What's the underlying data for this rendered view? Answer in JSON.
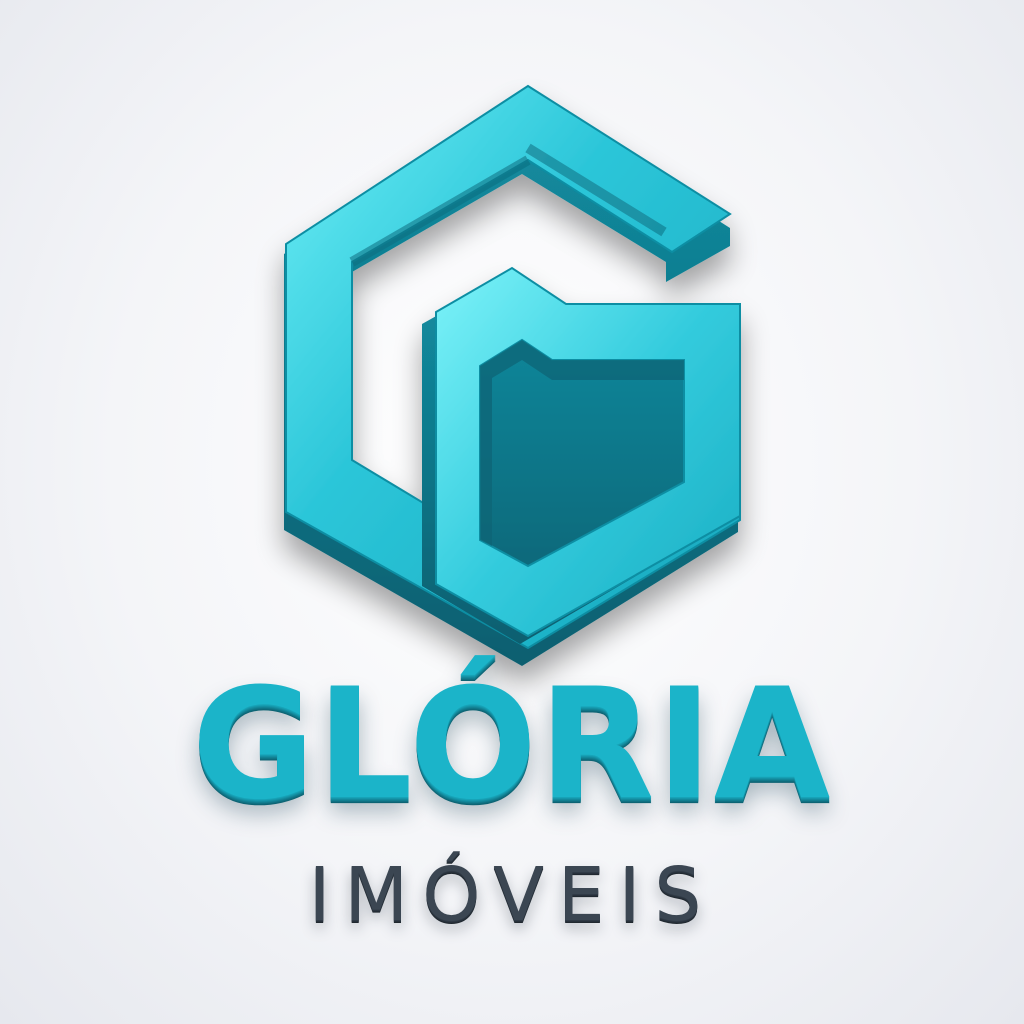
{
  "brand": {
    "name": "GLÓRIA",
    "subtitle": "IMÓVEIS",
    "emblem_icon": "stylized-g-house-icon"
  },
  "colors": {
    "background": "#f2f3f6",
    "primary": "#1bb4c9",
    "primary_dark": "#0d6373",
    "primary_light": "#5fe3f0",
    "text_dark": "#3b4652"
  }
}
